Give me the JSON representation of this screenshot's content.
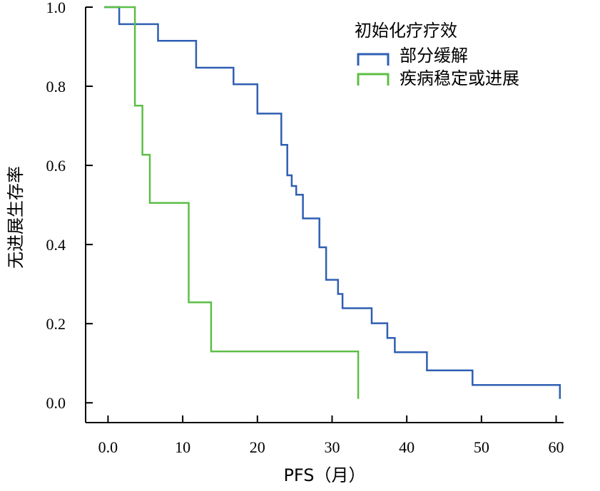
{
  "chart_data": {
    "type": "line",
    "step": true,
    "xlabel": "PFS（月）",
    "ylabel": "无进展生存率",
    "xlim": [
      -3,
      61
    ],
    "ylim": [
      -0.05,
      1.0
    ],
    "xticks": [
      0,
      10,
      20,
      30,
      40,
      50,
      60
    ],
    "xtick_labels": [
      "0.0",
      "10",
      "20",
      "30",
      "40",
      "50",
      "60"
    ],
    "yticks": [
      0.0,
      0.2,
      0.4,
      0.6,
      0.8,
      1.0
    ],
    "ytick_labels": [
      "0.0",
      "0.2",
      "0.4",
      "0.6",
      "0.8",
      "1.0"
    ],
    "grid": false,
    "legend_title": "初始化疗疗效",
    "legend_position": "top-right",
    "series": [
      {
        "name": "部分缓解",
        "color": "#2f5fb3",
        "x": [
          -0.5,
          1.5,
          6.7,
          11.8,
          16.8,
          20.0,
          23.2,
          24.0,
          24.6,
          25.2,
          26.1,
          28.3,
          29.2,
          29.8,
          30.8,
          31.4,
          35.3,
          37.4,
          38.4,
          42.7,
          48.8,
          60.5
        ],
        "y": [
          1.0,
          0.957,
          0.915,
          0.847,
          0.805,
          0.731,
          0.652,
          0.575,
          0.548,
          0.526,
          0.466,
          0.393,
          0.311,
          0.311,
          0.275,
          0.239,
          0.201,
          0.164,
          0.128,
          0.082,
          0.045,
          0.01
        ]
      },
      {
        "name": "疾病稳定或进展",
        "color": "#5cbf46",
        "x": [
          -0.5,
          3.6,
          4.6,
          5.6,
          10.8,
          13.8,
          33.5
        ],
        "y": [
          1.0,
          0.751,
          0.627,
          0.505,
          0.254,
          0.13,
          0.01
        ]
      }
    ]
  }
}
